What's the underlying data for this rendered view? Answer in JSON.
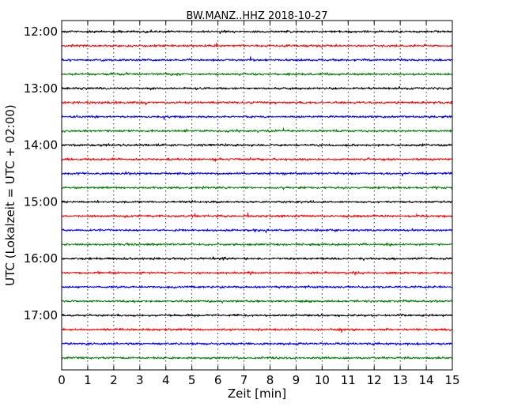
{
  "chart_data": {
    "type": "line",
    "title": "BW.MANZ..HHZ 2018-10-27",
    "xlabel": "Zeit  [min]",
    "ylabel": "UTC (Lokalzeit = UTC + 02:00)",
    "xlim": [
      0,
      15
    ],
    "x_ticks": [
      "0",
      "1",
      "2",
      "3",
      "4",
      "5",
      "6",
      "7",
      "8",
      "9",
      "10",
      "11",
      "12",
      "13",
      "14",
      "15"
    ],
    "y_tick_labels": [
      "12:00",
      "13:00",
      "14:00",
      "15:00",
      "16:00",
      "17:00"
    ],
    "grid": "vertical-dotted",
    "trace_minutes_per_row": 15,
    "colors": [
      "#000000",
      "#ff0000",
      "#0000ff",
      "#008000"
    ],
    "series": [
      {
        "start": "12:00"
      },
      {
        "start": "12:15"
      },
      {
        "start": "12:30"
      },
      {
        "start": "12:45"
      },
      {
        "start": "13:00"
      },
      {
        "start": "13:15"
      },
      {
        "start": "13:30"
      },
      {
        "start": "13:45"
      },
      {
        "start": "14:00"
      },
      {
        "start": "14:15"
      },
      {
        "start": "14:30"
      },
      {
        "start": "14:45"
      },
      {
        "start": "15:00"
      },
      {
        "start": "15:15"
      },
      {
        "start": "15:30"
      },
      {
        "start": "15:45"
      },
      {
        "start": "16:00"
      },
      {
        "start": "16:15"
      },
      {
        "start": "16:30"
      },
      {
        "start": "16:45"
      },
      {
        "start": "17:00"
      },
      {
        "start": "17:15"
      },
      {
        "start": "17:30"
      },
      {
        "start": "17:45"
      }
    ]
  }
}
